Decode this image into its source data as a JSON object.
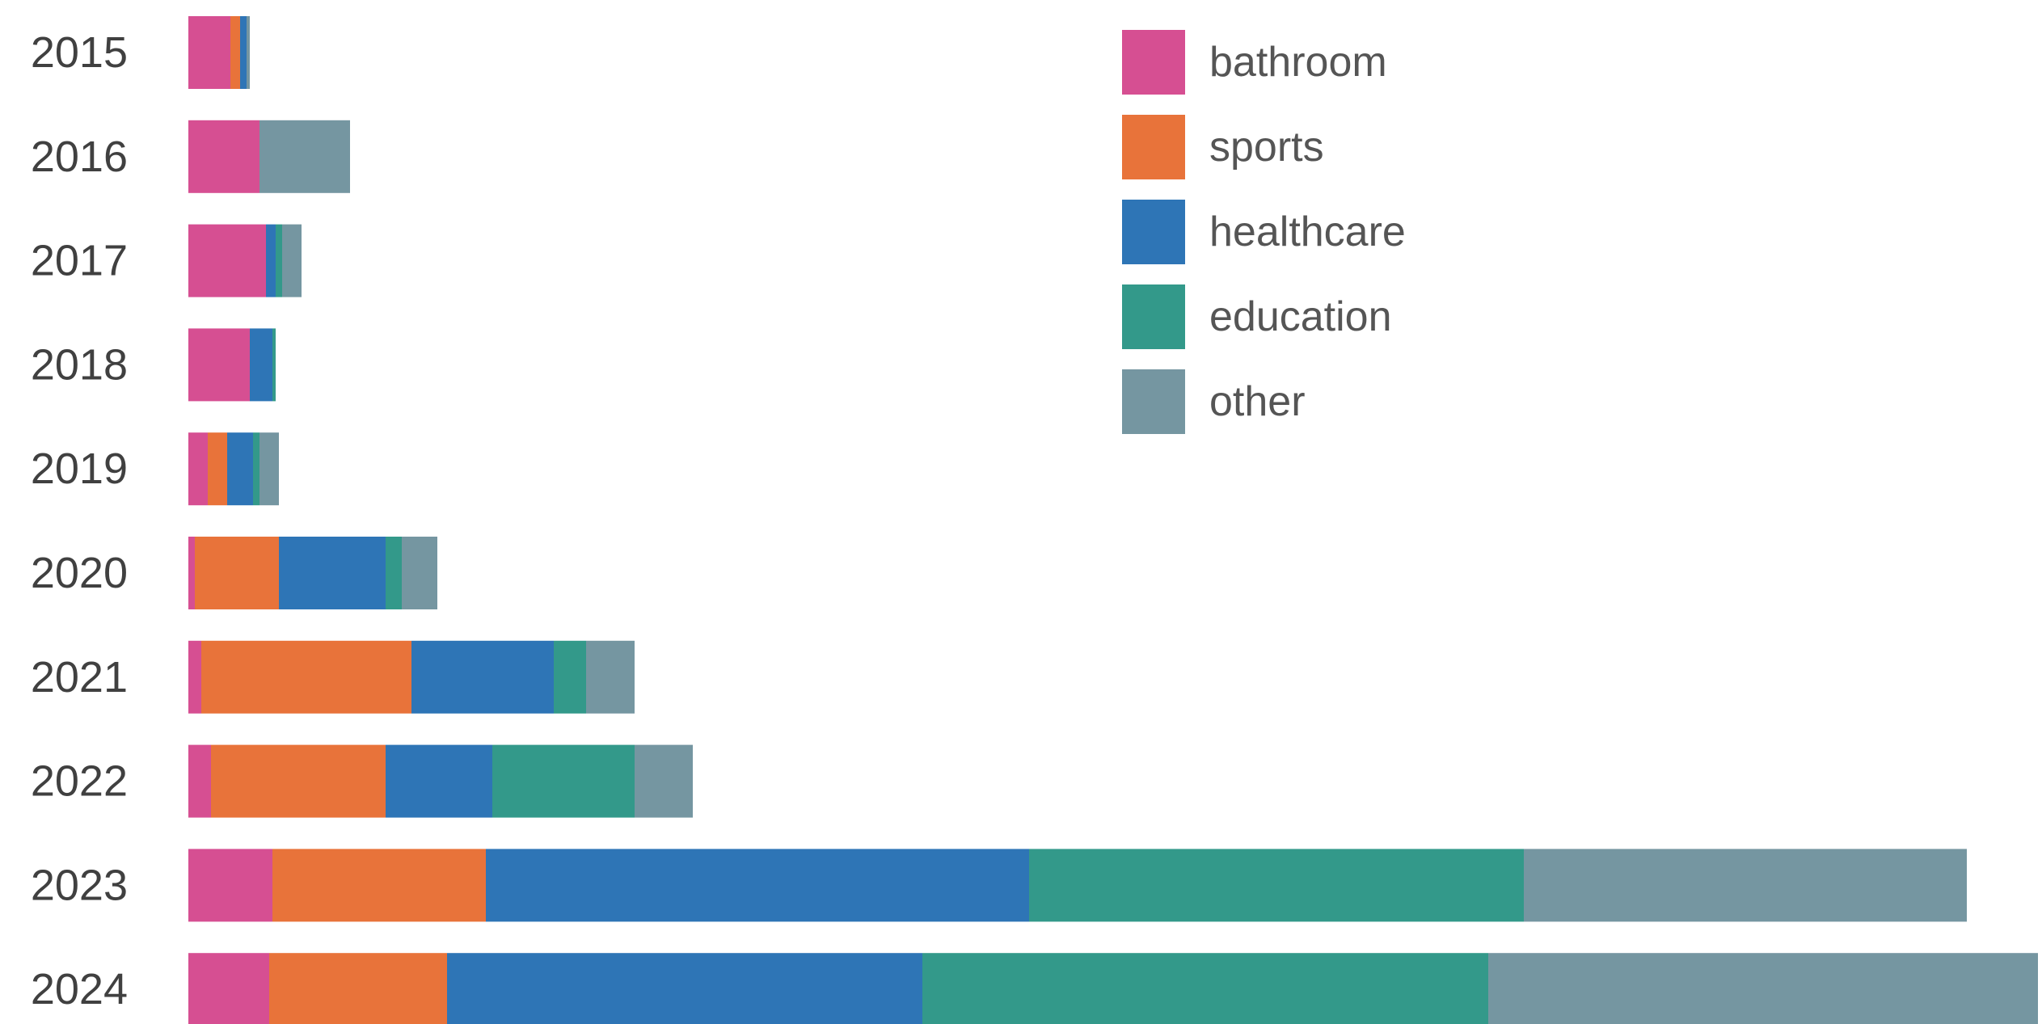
{
  "chart_data": {
    "type": "bar",
    "orientation": "horizontal",
    "stacked": true,
    "title": "",
    "xlabel": "",
    "ylabel": "",
    "categories": [
      "2015",
      "2016",
      "2017",
      "2018",
      "2019",
      "2020",
      "2021",
      "2022",
      "2023",
      "2024"
    ],
    "series": [
      {
        "name": "bathroom",
        "color": "#d64f92",
        "values": [
          13,
          22,
          24,
          19,
          6,
          2,
          4,
          7,
          26,
          25
        ]
      },
      {
        "name": "sports",
        "color": "#e8733a",
        "values": [
          3,
          0,
          0,
          0,
          6,
          26,
          65,
          54,
          66,
          55
        ]
      },
      {
        "name": "healthcare",
        "color": "#2e75b6",
        "values": [
          2,
          0,
          3,
          7,
          8,
          33,
          44,
          33,
          168,
          147
        ]
      },
      {
        "name": "education",
        "color": "#33998a",
        "values": [
          0,
          0,
          2,
          1,
          2,
          5,
          10,
          44,
          153,
          175
        ]
      },
      {
        "name": "other",
        "color": "#7596a1",
        "values": [
          1,
          28,
          6,
          0,
          6,
          11,
          15,
          18,
          137,
          170
        ]
      }
    ],
    "xlim": [
      0,
      572
    ],
    "grid": false,
    "legend_position": "top-center"
  }
}
